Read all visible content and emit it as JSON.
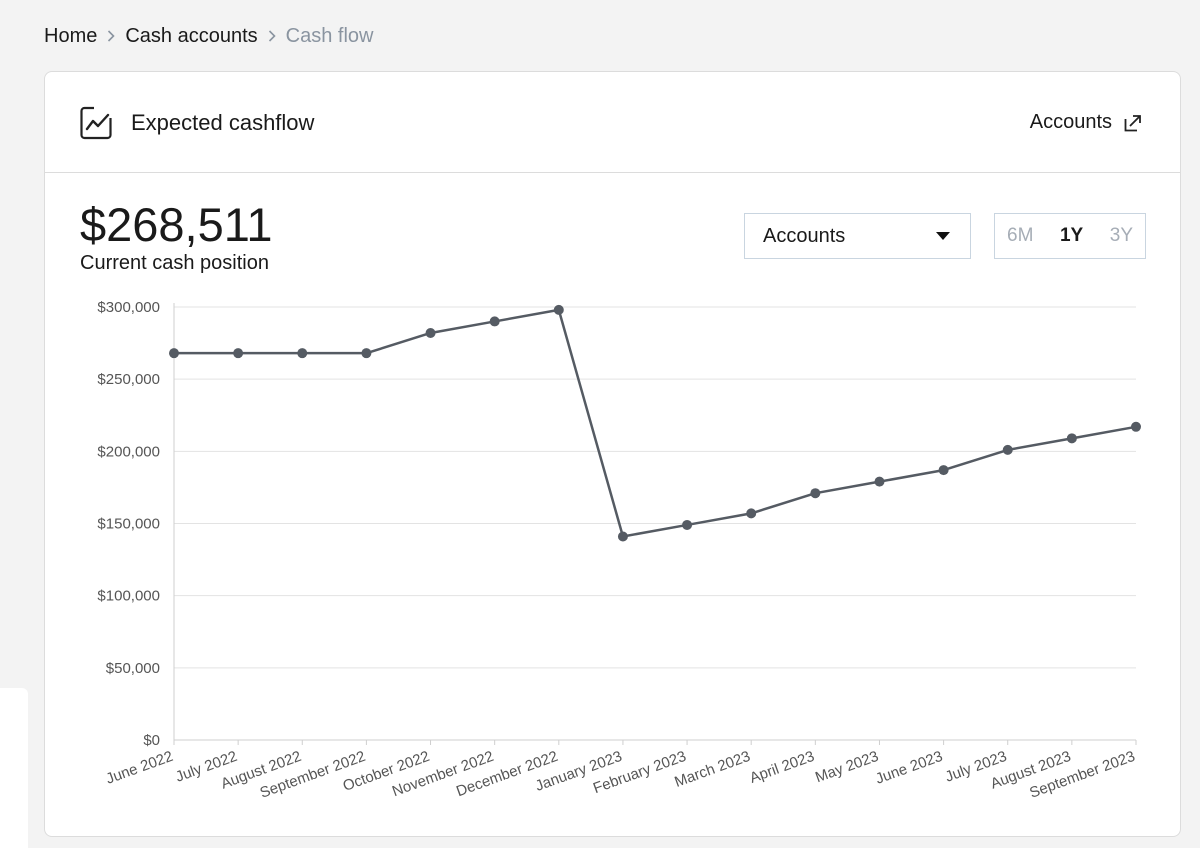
{
  "breadcrumb": {
    "items": [
      {
        "label": "Home"
      },
      {
        "label": "Cash accounts"
      }
    ],
    "current": "Cash flow"
  },
  "card": {
    "title": "Expected cashflow",
    "accounts_link": "Accounts",
    "icon": "line-chart-icon",
    "link_icon": "external-link-icon"
  },
  "summary": {
    "value": "$268,511",
    "label": "Current cash position"
  },
  "filters": {
    "account_select": "Accounts",
    "ranges": [
      "6M",
      "1Y",
      "3Y"
    ],
    "active_range": "1Y"
  },
  "colors": {
    "line": "#555b63",
    "grid": "#e3e3e3",
    "axis_text": "#555555",
    "range_inactive": "#a6adb6",
    "select_border": "#c9d5e0"
  },
  "chart_data": {
    "type": "line",
    "x": [
      "June 2022",
      "July 2022",
      "August 2022",
      "September 2022",
      "October 2022",
      "November 2022",
      "December 2022",
      "January 2023",
      "February 2023",
      "March 2023",
      "April 2023",
      "May 2023",
      "June 2023",
      "July 2023",
      "August 2023",
      "September 2023"
    ],
    "series": [
      {
        "values": [
          268000,
          268000,
          268000,
          268000,
          282000,
          290000,
          298000,
          141000,
          149000,
          157000,
          171000,
          179000,
          187000,
          201000,
          209000,
          217000
        ]
      }
    ],
    "y_ticks": [
      "$0",
      "$50,000",
      "$100,000",
      "$150,000",
      "$200,000",
      "$250,000",
      "$300,000"
    ],
    "ylim": [
      0,
      300000
    ],
    "grid": true
  }
}
